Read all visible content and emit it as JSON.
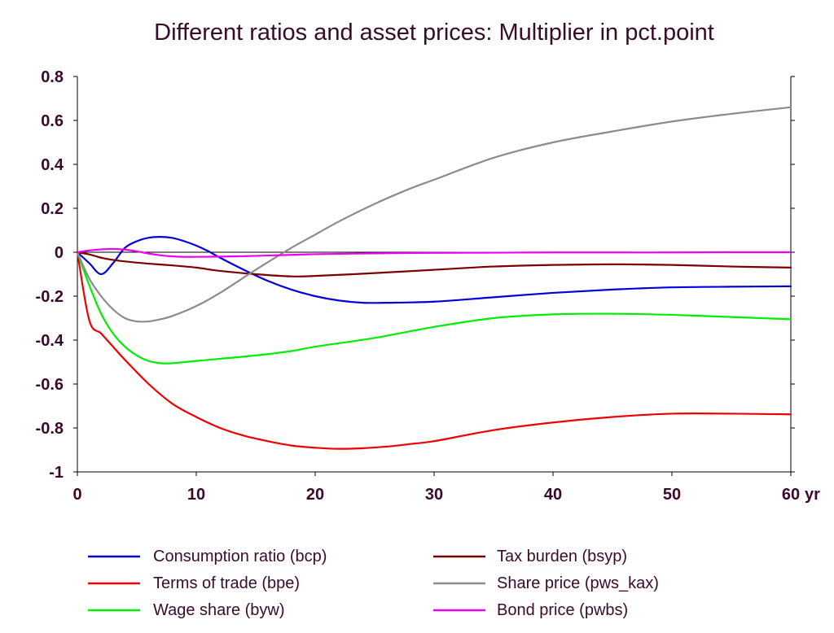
{
  "chart_data": {
    "type": "line",
    "title": "Different ratios and asset prices: Multiplier in pct.point",
    "xlabel": "",
    "ylabel": "",
    "x_unit_label": "yr",
    "xlim": [
      0,
      60
    ],
    "ylim": [
      -1,
      0.8
    ],
    "x_ticks": [
      0,
      10,
      20,
      30,
      40,
      50,
      60
    ],
    "x_tick_labels": [
      "0",
      "10",
      "20",
      "30",
      "40",
      "50",
      "60"
    ],
    "y_ticks": [
      0.8,
      0.6,
      0.4,
      0.2,
      0,
      -0.2,
      -0.4,
      -0.6,
      -0.8,
      -1
    ],
    "y_tick_labels": [
      "0.8",
      "0.6",
      "0.4",
      "0.2",
      "0",
      "-0.2",
      "-0.4",
      "-0.6",
      "-0.8",
      "-1"
    ],
    "grid": false,
    "zero_line": true,
    "legend_position": "bottom",
    "series": [
      {
        "name": "Consumption ratio (bcp)",
        "color": "#0000dd",
        "x": [
          0,
          1,
          2,
          3,
          4,
          5,
          6,
          7,
          8,
          9,
          10,
          11,
          12,
          14,
          16,
          18,
          20,
          22,
          24,
          26,
          30,
          35,
          40,
          45,
          50,
          55,
          60
        ],
        "y": [
          0,
          -0.05,
          -0.1,
          -0.05,
          0.02,
          0.05,
          0.066,
          0.07,
          0.065,
          0.05,
          0.03,
          0.005,
          -0.025,
          -0.08,
          -0.13,
          -0.17,
          -0.2,
          -0.22,
          -0.23,
          -0.23,
          -0.225,
          -0.205,
          -0.185,
          -0.17,
          -0.16,
          -0.157,
          -0.155
        ]
      },
      {
        "name": "Terms of trade (bpe)",
        "color": "#ee0000",
        "x": [
          0,
          1,
          2,
          3,
          4,
          6,
          8,
          10,
          12,
          14,
          16,
          18,
          20,
          22,
          24,
          26,
          28,
          30,
          35,
          40,
          45,
          50,
          55,
          60
        ],
        "y": [
          0,
          -0.31,
          -0.37,
          -0.43,
          -0.49,
          -0.6,
          -0.69,
          -0.75,
          -0.8,
          -0.835,
          -0.86,
          -0.88,
          -0.89,
          -0.895,
          -0.892,
          -0.885,
          -0.873,
          -0.86,
          -0.81,
          -0.775,
          -0.75,
          -0.735,
          -0.735,
          -0.738
        ]
      },
      {
        "name": "Wage share (byw)",
        "color": "#00ee00",
        "x": [
          0,
          1,
          2,
          3,
          4,
          5,
          6,
          7,
          8,
          10,
          12,
          15,
          18,
          20,
          25,
          30,
          35,
          40,
          45,
          50,
          55,
          60
        ],
        "y": [
          0,
          -0.15,
          -0.28,
          -0.37,
          -0.43,
          -0.47,
          -0.495,
          -0.505,
          -0.505,
          -0.495,
          -0.485,
          -0.47,
          -0.45,
          -0.43,
          -0.39,
          -0.34,
          -0.3,
          -0.283,
          -0.28,
          -0.285,
          -0.295,
          -0.305
        ]
      },
      {
        "name": "Tax burden (bsyp)",
        "color": "#7a0000",
        "x": [
          0,
          1,
          2,
          3,
          4,
          6,
          8,
          10,
          12,
          15,
          18,
          20,
          25,
          30,
          35,
          40,
          45,
          50,
          55,
          60
        ],
        "y": [
          0,
          -0.01,
          -0.025,
          -0.035,
          -0.042,
          -0.052,
          -0.06,
          -0.07,
          -0.085,
          -0.1,
          -0.11,
          -0.108,
          -0.095,
          -0.08,
          -0.065,
          -0.058,
          -0.055,
          -0.058,
          -0.065,
          -0.07
        ]
      },
      {
        "name": "Share price (pws_kax)",
        "color": "#8c8c8c",
        "x": [
          0,
          1,
          2,
          3,
          4,
          5,
          6,
          7,
          8,
          10,
          12,
          15,
          18,
          20,
          22,
          25,
          28,
          30,
          35,
          40,
          45,
          50,
          55,
          60
        ],
        "y": [
          0,
          -0.12,
          -0.2,
          -0.26,
          -0.3,
          -0.315,
          -0.315,
          -0.305,
          -0.29,
          -0.245,
          -0.185,
          -0.08,
          0.02,
          0.08,
          0.14,
          0.22,
          0.29,
          0.33,
          0.43,
          0.5,
          0.55,
          0.595,
          0.63,
          0.66
        ]
      },
      {
        "name": "Bond price (pwbs)",
        "color": "#ee00ee",
        "x": [
          0,
          1,
          2,
          3,
          4,
          5,
          6,
          7,
          8,
          9,
          10,
          12,
          14,
          16,
          18,
          20,
          25,
          30,
          35,
          40,
          45,
          50,
          55,
          60
        ],
        "y": [
          0,
          0.008,
          0.013,
          0.015,
          0.012,
          0.004,
          -0.006,
          -0.014,
          -0.019,
          -0.021,
          -0.021,
          -0.02,
          -0.018,
          -0.015,
          -0.012,
          -0.009,
          -0.005,
          -0.003,
          -0.002,
          -0.001,
          -0.001,
          -0.001,
          0,
          0
        ]
      }
    ]
  }
}
